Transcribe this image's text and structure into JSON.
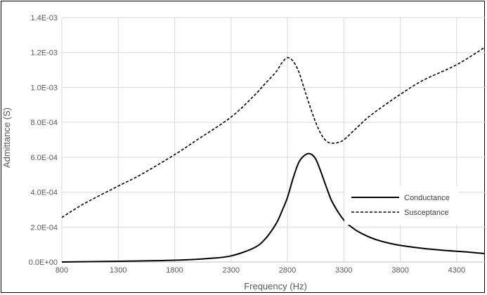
{
  "chart_data": {
    "type": "line",
    "title": "",
    "xlabel": "Frequency (Hz)",
    "ylabel": "Admittance (S)",
    "xlim": [
      800,
      4550
    ],
    "ylim": [
      0,
      0.0014
    ],
    "x_ticks": [
      800,
      1300,
      1800,
      2300,
      2800,
      3300,
      3800,
      4300
    ],
    "x_tick_labels": [
      "800",
      "1300",
      "1800",
      "2300",
      "2800",
      "3300",
      "3800",
      "4300"
    ],
    "y_ticks": [
      0,
      0.0002,
      0.0004,
      0.0006,
      0.0008,
      0.001,
      0.0012,
      0.0014
    ],
    "y_tick_labels": [
      "0.0E+00",
      "2.0E-04",
      "4.0E-04",
      "6.0E-04",
      "8.0E-04",
      "1.0E-03",
      "1.2E-03",
      "1.4E-03"
    ],
    "grid": true,
    "legend_position": "lower-right",
    "series": [
      {
        "name": "Conductance",
        "style": "solid",
        "color": "#000000",
        "x": [
          800,
          1300,
          1800,
          2100,
          2300,
          2500,
          2600,
          2700,
          2750,
          2800,
          2850,
          2900,
          2950,
          3000,
          3050,
          3100,
          3150,
          3200,
          3300,
          3400,
          3500,
          3600,
          3700,
          3800,
          4000,
          4200,
          4400,
          4550
        ],
        "y": [
          0.0,
          4e-06,
          1e-05,
          2e-05,
          3.5e-05,
          8e-05,
          0.00013,
          0.00022,
          0.00029,
          0.00037,
          0.00048,
          0.00057,
          0.00061,
          0.00062,
          0.00059,
          0.00051,
          0.00042,
          0.00034,
          0.00024,
          0.000185,
          0.00015,
          0.000125,
          0.000108,
          9.5e-05,
          7.8e-05,
          6.6e-05,
          5.7e-05,
          4.8e-05
        ]
      },
      {
        "name": "Susceptance",
        "style": "dashed",
        "color": "#000000",
        "x": [
          800,
          1000,
          1300,
          1500,
          1800,
          2000,
          2300,
          2500,
          2600,
          2700,
          2750,
          2800,
          2850,
          2900,
          2950,
          3000,
          3050,
          3100,
          3150,
          3200,
          3250,
          3300,
          3400,
          3500,
          3600,
          3800,
          4000,
          4300,
          4550
        ],
        "y": [
          0.000255,
          0.000335,
          0.000435,
          0.0005,
          0.000615,
          0.0007,
          0.00083,
          0.00095,
          0.00102,
          0.00109,
          0.00114,
          0.00117,
          0.00115,
          0.00109,
          0.00099,
          0.00089,
          0.0008,
          0.00073,
          0.00069,
          0.00068,
          0.000685,
          0.0007,
          0.00076,
          0.00082,
          0.00087,
          0.00096,
          0.00104,
          0.00113,
          0.00123
        ]
      }
    ]
  }
}
